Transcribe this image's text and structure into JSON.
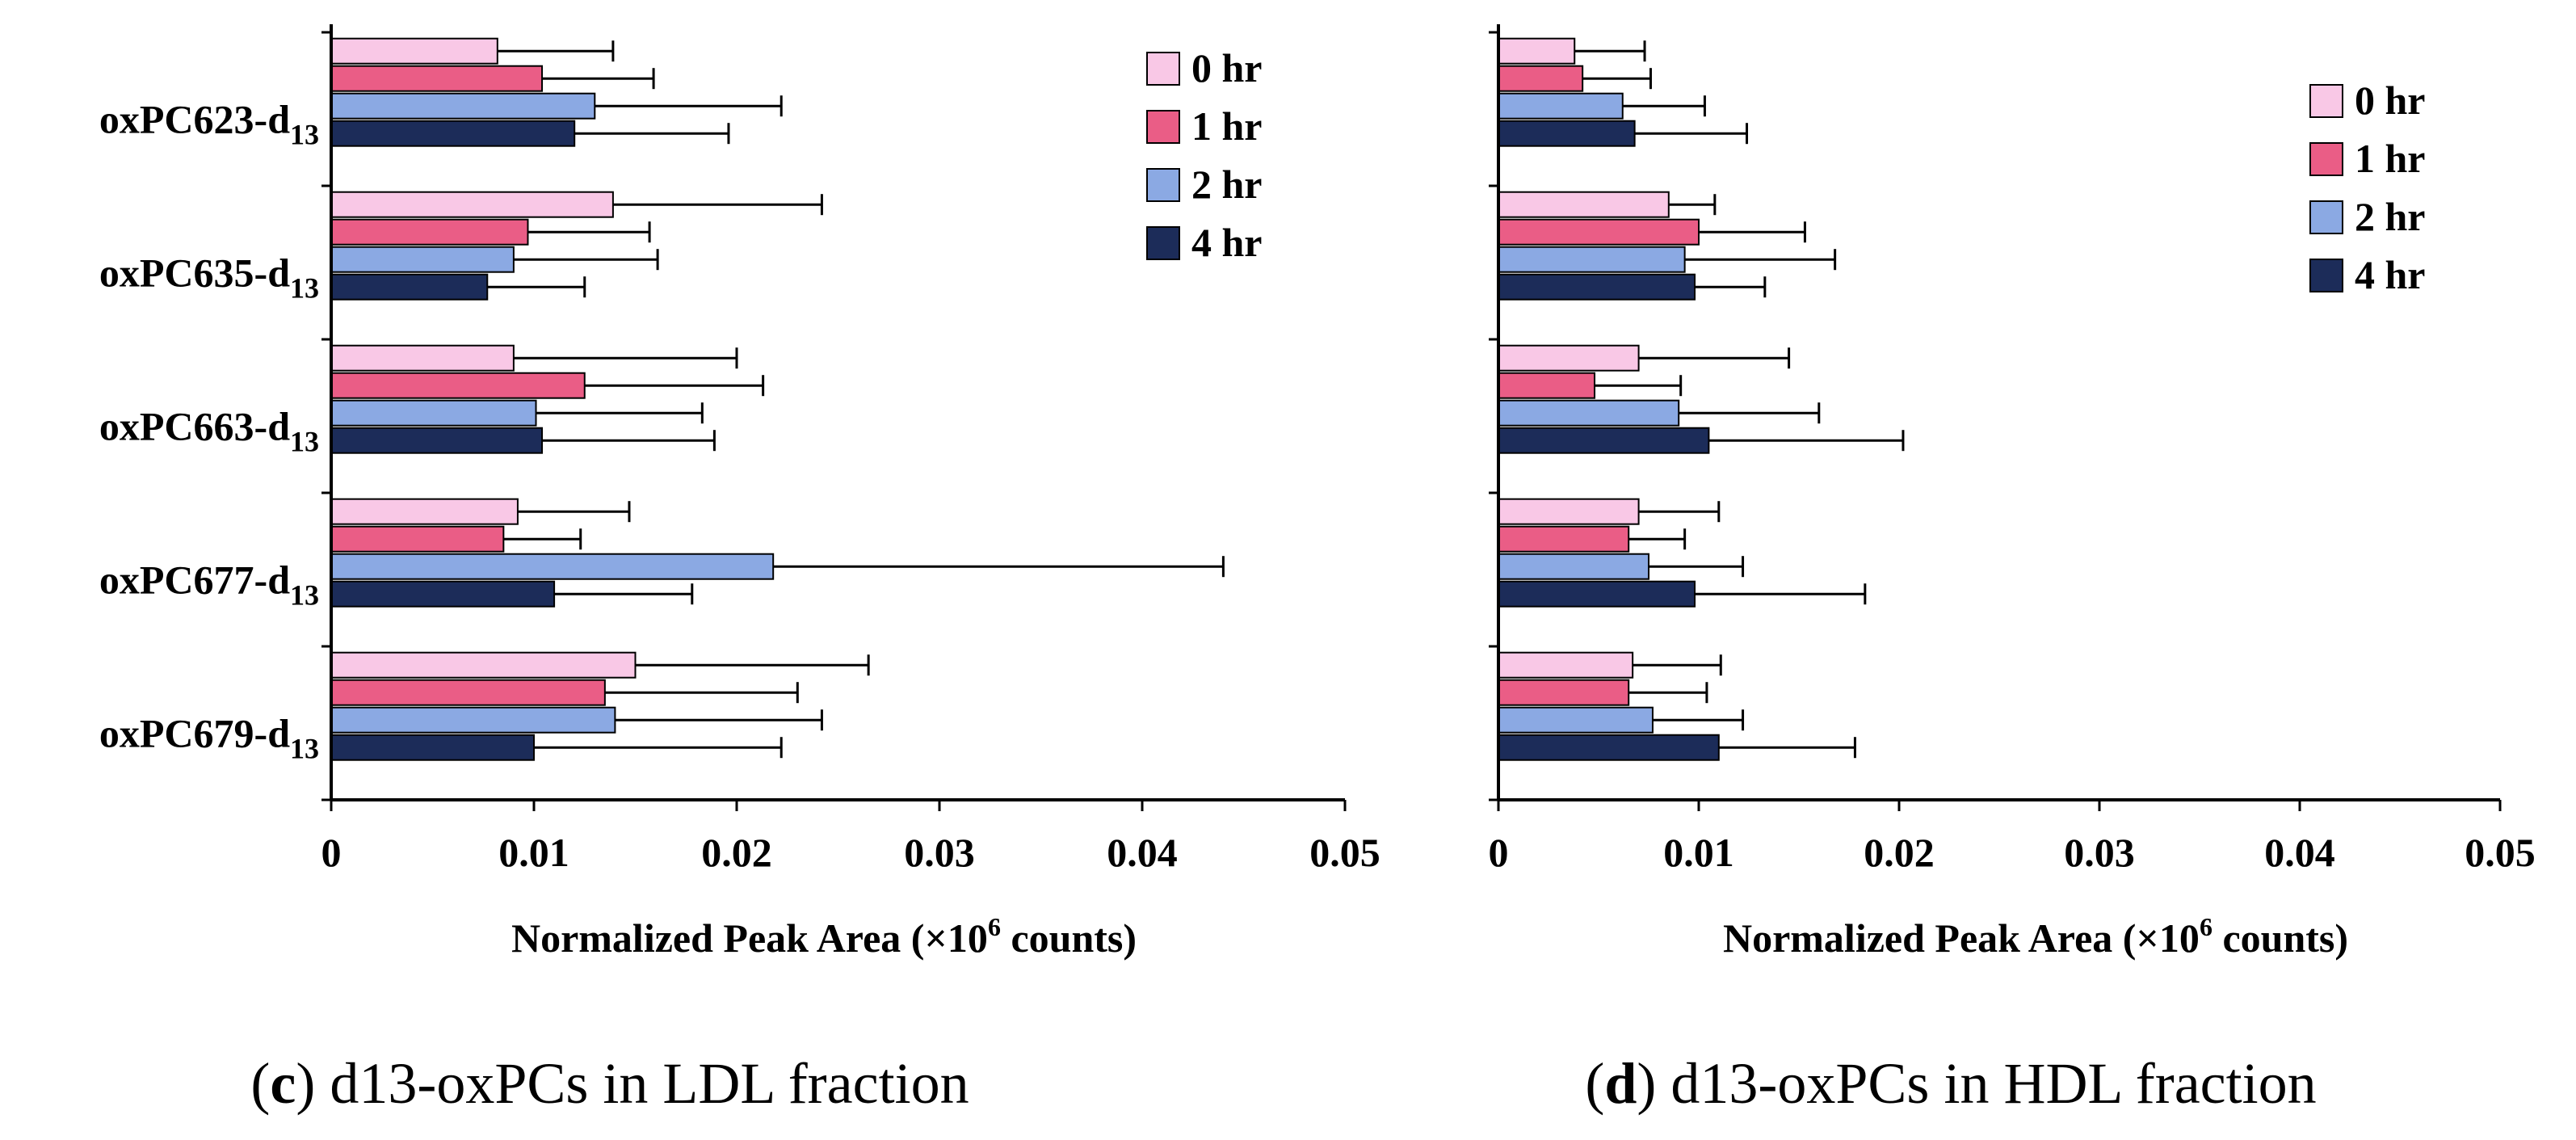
{
  "figure": {
    "panels": [
      {
        "caption": {
          "letter": "c",
          "open": "(",
          "close": ")",
          "text": " d13-oxPCs in LDL fraction"
        },
        "x_label_prefix": "Normalized Peak Area (×10",
        "x_label_exp": "6",
        "x_label_suffix": " counts)"
      },
      {
        "caption": {
          "letter": "d",
          "open": "(",
          "close": ")",
          "text": " d13-oxPCs in HDL fraction"
        },
        "x_label_prefix": "Normalized Peak Area (×10",
        "x_label_exp": "6",
        "x_label_suffix": " counts)"
      }
    ]
  },
  "chart_data": [
    {
      "type": "bar",
      "orientation": "horizontal",
      "title": "(c) d13-oxPCs in LDL fraction",
      "xlabel": "Normalized Peak Area (×10^6 counts)",
      "ylabel": "",
      "xlim": [
        0,
        0.05
      ],
      "xticks": [
        "0",
        "0.01",
        "0.02",
        "0.03",
        "0.04",
        "0.05"
      ],
      "categories": [
        "oxPC623-d13",
        "oxPC635-d13",
        "oxPC663-d13",
        "oxPC677-d13",
        "oxPC679-d13"
      ],
      "category_base": [
        "oxPC623-d",
        "oxPC635-d",
        "oxPC663-d",
        "oxPC677-d",
        "oxPC679-d"
      ],
      "category_sub": "13",
      "legend": {
        "position": "top-right"
      },
      "series": [
        {
          "name": "0 hr",
          "color": "#f9c8e6",
          "values": [
            0.0082,
            0.0139,
            0.009,
            0.0092,
            0.015
          ],
          "errors": [
            0.0057,
            0.0103,
            0.011,
            0.0055,
            0.0115
          ]
        },
        {
          "name": "1 hr",
          "color": "#ea5d86",
          "values": [
            0.0104,
            0.0097,
            0.0125,
            0.0085,
            0.0135
          ],
          "errors": [
            0.0055,
            0.006,
            0.0088,
            0.0038,
            0.0095
          ]
        },
        {
          "name": "2 hr",
          "color": "#8ba9e3",
          "values": [
            0.013,
            0.009,
            0.0101,
            0.0218,
            0.014
          ],
          "errors": [
            0.0092,
            0.0071,
            0.0082,
            0.0222,
            0.0102
          ]
        },
        {
          "name": "4 hr",
          "color": "#1c2c59",
          "values": [
            0.012,
            0.0077,
            0.0104,
            0.011,
            0.01
          ],
          "errors": [
            0.0076,
            0.0048,
            0.0085,
            0.0068,
            0.0122
          ]
        }
      ]
    },
    {
      "type": "bar",
      "orientation": "horizontal",
      "title": "(d) d13-oxPCs in HDL fraction",
      "xlabel": "Normalized Peak Area (×10^6 counts)",
      "ylabel": "",
      "xlim": [
        0,
        0.05
      ],
      "xticks": [
        "0",
        "0.01",
        "0.02",
        "0.03",
        "0.04",
        "0.05"
      ],
      "categories": [
        "oxPC623-d13",
        "oxPC635-d13",
        "oxPC663-d13",
        "oxPC677-d13",
        "oxPC679-d13"
      ],
      "legend": {
        "position": "top-right"
      },
      "series": [
        {
          "name": "0 hr",
          "color": "#f9c8e6",
          "values": [
            0.0038,
            0.0085,
            0.007,
            0.007,
            0.0067
          ],
          "errors": [
            0.0035,
            0.0023,
            0.0075,
            0.004,
            0.0044
          ]
        },
        {
          "name": "1 hr",
          "color": "#ea5d86",
          "values": [
            0.0042,
            0.01,
            0.0048,
            0.0065,
            0.0065
          ],
          "errors": [
            0.0034,
            0.0053,
            0.0043,
            0.0028,
            0.0039
          ]
        },
        {
          "name": "2 hr",
          "color": "#8ba9e3",
          "values": [
            0.0062,
            0.0093,
            0.009,
            0.0075,
            0.0077
          ],
          "errors": [
            0.0041,
            0.0075,
            0.007,
            0.0047,
            0.0045
          ]
        },
        {
          "name": "4 hr",
          "color": "#1c2c59",
          "values": [
            0.0068,
            0.0098,
            0.0105,
            0.0098,
            0.011
          ],
          "errors": [
            0.0056,
            0.0035,
            0.0097,
            0.0085,
            0.0068
          ]
        }
      ]
    }
  ]
}
